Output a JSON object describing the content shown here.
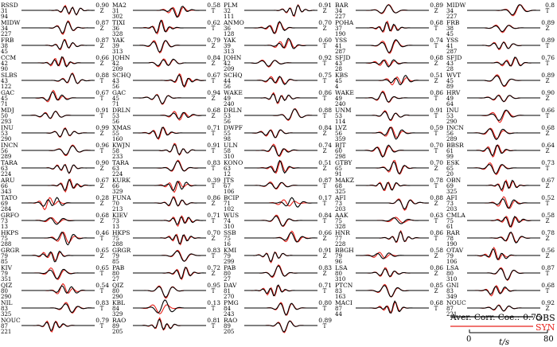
{
  "figure": {
    "aver_corr_label": "Aver. Corr. Coe.:",
    "aver_corr_value": "0.75",
    "obs_label": "OBS",
    "syn_label": "SYN",
    "axis_label": "t/s",
    "tick_start": "0",
    "tick_end": "80",
    "obs_color": "#000000",
    "syn_color": "#e8231c"
  },
  "chart_data": {
    "type": "line",
    "time_range_s": [
      0,
      80
    ],
    "columns": [
      [
        {
          "station": "RSSD",
          "dist": "31",
          "az": "94",
          "comp": "Z",
          "corr": "0.90"
        },
        {
          "station": "MIDW",
          "dist": "34",
          "az": "227",
          "comp": "Z",
          "corr": "0.87"
        },
        {
          "station": "FRB",
          "dist": "38",
          "az": "45",
          "comp": "Z",
          "corr": "0.87"
        },
        {
          "station": "CCM",
          "dist": "42",
          "az": "90",
          "comp": "Z",
          "corr": "0.66"
        },
        {
          "station": "SLBS",
          "dist": "43",
          "az": "122",
          "comp": "T",
          "corr": "0.88"
        },
        {
          "station": "GAC",
          "dist": "45",
          "az": "71",
          "comp": "T",
          "corr": "0.67"
        },
        {
          "station": "MDJ",
          "dist": "50",
          "az": "293",
          "comp": "T",
          "corr": "0.91"
        },
        {
          "station": "INU",
          "dist": "53",
          "az": "290",
          "comp": "Z",
          "corr": "0.99"
        },
        {
          "station": "INCN",
          "dist": "56",
          "az": "289",
          "comp": "T",
          "corr": "0.96"
        },
        {
          "station": "TARA",
          "dist": "63",
          "az": "224",
          "comp": "Z",
          "corr": "0.90"
        },
        {
          "station": "ARU",
          "dist": "66",
          "az": "343",
          "comp": "Z",
          "corr": "0.67"
        },
        {
          "station": "TATO",
          "dist": "69",
          "az": "284",
          "comp": "Z",
          "corr": "0.28"
        },
        {
          "station": "GRFO",
          "dist": "73",
          "az": "13",
          "comp": "Z",
          "corr": "0.68"
        },
        {
          "station": "HKPS",
          "dist": "75",
          "az": "288",
          "comp": "T",
          "corr": "0.46"
        },
        {
          "station": "GRGR",
          "dist": "79",
          "az": "85",
          "comp": "Z",
          "corr": "0.65"
        },
        {
          "station": "KIV",
          "dist": "79",
          "az": "351",
          "comp": "T",
          "corr": "0.65"
        },
        {
          "station": "QIZ",
          "dist": "80",
          "az": "290",
          "comp": "T",
          "corr": "0.54"
        },
        {
          "station": "NIL",
          "dist": "83",
          "az": "325",
          "comp": "T",
          "corr": "0.83"
        },
        {
          "station": "NOUC",
          "dist": "87",
          "az": "221",
          "comp": "T",
          "corr": "0.79"
        }
      ],
      [
        {
          "station": "MA2",
          "dist": "31",
          "az": "302",
          "comp": "T",
          "corr": "0.58"
        },
        {
          "station": "TIXI",
          "dist": "36",
          "az": "328",
          "comp": "T",
          "corr": "0.62"
        },
        {
          "station": "YAK",
          "dist": "39",
          "az": "313",
          "comp": "Z",
          "corr": "0.79"
        },
        {
          "station": "JOHN",
          "dist": "42",
          "az": "209",
          "comp": "Z",
          "corr": "0.84"
        },
        {
          "station": "SCHQ",
          "dist": "43",
          "az": "56",
          "comp": "T",
          "corr": "0.67"
        },
        {
          "station": "GAC",
          "dist": "45",
          "az": "71",
          "comp": "Z",
          "corr": "0.94"
        },
        {
          "station": "DRLN",
          "dist": "53",
          "az": "56",
          "comp": "Z",
          "corr": "0.68"
        },
        {
          "station": "XMAS",
          "dist": "55",
          "az": "160",
          "comp": "T",
          "corr": "0.71"
        },
        {
          "station": "KWJN",
          "dist": "58",
          "az": "233",
          "comp": "T",
          "corr": "0.91"
        },
        {
          "station": "TARA",
          "dist": "63",
          "az": "224",
          "comp": "T",
          "corr": "0.83"
        },
        {
          "station": "KURK",
          "dist": "66",
          "az": "329",
          "comp": "T",
          "corr": "0.39"
        },
        {
          "station": "FUNA",
          "dist": "70",
          "az": "213",
          "comp": "Z",
          "corr": "0.86"
        },
        {
          "station": "KIEV",
          "dist": "73",
          "az": "13",
          "comp": "T",
          "corr": "0.71"
        },
        {
          "station": "HKPS",
          "dist": "75",
          "az": "288",
          "comp": "Z",
          "corr": "0.70"
        },
        {
          "station": "GRGR",
          "dist": "79",
          "az": "85",
          "comp": "T",
          "corr": "0.83"
        },
        {
          "station": "PAB",
          "dist": "80",
          "az": "27",
          "comp": "Z",
          "corr": "0.72"
        },
        {
          "station": "QIZ",
          "dist": "80",
          "az": "290",
          "comp": "T",
          "corr": "0.95"
        },
        {
          "station": "KBL",
          "dist": "84",
          "az": "329",
          "comp": "T",
          "corr": "0.13"
        },
        {
          "station": "RAO",
          "dist": "89",
          "az": "205",
          "comp": "T",
          "corr": "0.81"
        }
      ],
      [
        {
          "station": "PLM",
          "dist": "32",
          "az": "111",
          "comp": "Z",
          "corr": "0.91"
        },
        {
          "station": "ANMO",
          "dist": "36",
          "az": "128",
          "comp": "Z",
          "corr": "0.70"
        },
        {
          "station": "YAK",
          "dist": "39",
          "az": "313",
          "comp": "T",
          "corr": "0.60"
        },
        {
          "station": "JOHN",
          "dist": "42",
          "az": "209",
          "comp": "T",
          "corr": "0.92"
        },
        {
          "station": "SCHQ",
          "dist": "44",
          "az": "56",
          "comp": "T",
          "corr": "0.75"
        },
        {
          "station": "WAKE",
          "dist": "49",
          "az": "240",
          "comp": "T",
          "corr": "0.86"
        },
        {
          "station": "DRLN",
          "dist": "53",
          "az": "56",
          "comp": "T",
          "corr": "0.88"
        },
        {
          "station": "DWPF",
          "dist": "55",
          "az": "98",
          "comp": "Z",
          "corr": "0.84"
        },
        {
          "station": "ULN",
          "dist": "58",
          "az": "310",
          "comp": "Z",
          "corr": "0.74"
        },
        {
          "station": "KONO",
          "dist": "63",
          "az": "12",
          "comp": "Z",
          "corr": "0.51"
        },
        {
          "station": "JTS",
          "dist": "67",
          "az": "106",
          "comp": "T",
          "corr": "0.87"
        },
        {
          "station": "BCIP",
          "dist": "71",
          "az": "102",
          "comp": "T",
          "corr": "0.17"
        },
        {
          "station": "WUS",
          "dist": "74",
          "az": "310",
          "comp": "T",
          "corr": "0.84"
        },
        {
          "station": "SSB",
          "dist": "75",
          "az": "16",
          "comp": "Z",
          "corr": "0.66"
        },
        {
          "station": "KMI",
          "dist": "79",
          "az": "299",
          "comp": "Z",
          "corr": "0.91"
        },
        {
          "station": "PAB",
          "dist": "80",
          "az": "27",
          "comp": "Z",
          "corr": "0.83"
        },
        {
          "station": "DAV",
          "dist": "81",
          "az": "270",
          "comp": "T",
          "corr": "0.71"
        },
        {
          "station": "PMG",
          "dist": "84",
          "az": "243",
          "comp": "T",
          "corr": "0.80"
        },
        {
          "station": "RAO",
          "dist": "89",
          "az": "205",
          "comp": "T",
          "corr": "0.89"
        }
      ],
      [
        {
          "station": "BAR",
          "dist": "34",
          "az": "227",
          "comp": "Z",
          "corr": "0.89"
        },
        {
          "station": "POHA",
          "dist": "37",
          "az": "190",
          "comp": "T",
          "corr": "0.68"
        },
        {
          "station": "YSS",
          "dist": "41",
          "az": "287",
          "comp": "T",
          "corr": "0.74"
        },
        {
          "station": "SFJD",
          "dist": "43",
          "az": "28",
          "comp": "Z",
          "corr": "0.68"
        },
        {
          "station": "KBS",
          "dist": "45",
          "az": "4",
          "comp": "Z",
          "corr": "0.51"
        },
        {
          "station": "WAKE",
          "dist": "49",
          "az": "240",
          "comp": "T",
          "corr": "0.86"
        },
        {
          "station": "UNM",
          "dist": "53",
          "az": "114",
          "comp": "T",
          "corr": "0.91"
        },
        {
          "station": "LVZ",
          "dist": "56",
          "az": "359",
          "comp": "T",
          "corr": "0.59"
        },
        {
          "station": "BJT",
          "dist": "60",
          "az": "298",
          "comp": "T",
          "corr": "0.70"
        },
        {
          "station": "GTBY",
          "dist": "65",
          "az": "91",
          "comp": "Z",
          "corr": "0.70"
        },
        {
          "station": "MAKZ",
          "dist": "68",
          "az": "325",
          "comp": "T",
          "corr": "0.78"
        },
        {
          "station": "AFI",
          "dist": "73",
          "az": "203",
          "comp": "Z",
          "corr": "0.88"
        },
        {
          "station": "AAK",
          "dist": "75",
          "az": "328",
          "comp": "T",
          "corr": "0.63"
        },
        {
          "station": "HNR",
          "dist": "77",
          "az": "228",
          "comp": "T",
          "corr": "0.86"
        },
        {
          "station": "BBGH",
          "dist": "79",
          "az": "96",
          "comp": "Z",
          "corr": "0.58"
        },
        {
          "station": "LSA",
          "dist": "80",
          "az": "310",
          "comp": "Z",
          "corr": "0.86"
        },
        {
          "station": "PTCN",
          "dist": "83",
          "az": "163",
          "comp": "Z",
          "corr": "0.85"
        },
        {
          "station": "MACI",
          "dist": "87",
          "az": "44",
          "comp": "T",
          "corr": "0.68"
        }
      ],
      [
        {
          "station": "MIDW",
          "dist": "34",
          "az": "227",
          "comp": "T",
          "corr": "0.8"
        },
        {
          "station": "FRB",
          "dist": "38",
          "az": "45",
          "comp": "Z",
          "corr": "0.89"
        },
        {
          "station": "YSS",
          "dist": "41",
          "az": "287",
          "comp": "T",
          "corr": "0.89"
        },
        {
          "station": "SFJD",
          "dist": "43",
          "az": "28",
          "comp": "T",
          "corr": "0.76"
        },
        {
          "station": "WVT",
          "dist": "45",
          "az": "89",
          "comp": "Z",
          "corr": "0.89"
        },
        {
          "station": "HRV",
          "dist": "49",
          "az": "64",
          "comp": "Z",
          "corr": "0.90"
        },
        {
          "station": "INU",
          "dist": "53",
          "az": "290",
          "comp": "T",
          "corr": "0.66"
        },
        {
          "station": "INCN",
          "dist": "56",
          "az": "289",
          "comp": "Z",
          "corr": "0.68"
        },
        {
          "station": "BBSR",
          "dist": "61",
          "az": "99",
          "comp": "Z",
          "corr": "0.64"
        },
        {
          "station": "ESK",
          "dist": "65",
          "az": "20",
          "comp": "T",
          "corr": "0.73"
        },
        {
          "station": "OBN",
          "dist": "69",
          "az": "325",
          "comp": "Z",
          "corr": "0.67"
        },
        {
          "station": "AFI",
          "dist": "73",
          "az": "203",
          "comp": "T",
          "corr": "0.52"
        },
        {
          "station": "CMLA",
          "dist": "75",
          "az": "61",
          "comp": "Z",
          "corr": "0.58"
        },
        {
          "station": "RAR",
          "dist": "78",
          "az": "190",
          "comp": "Z",
          "corr": "0.78"
        },
        {
          "station": "OTAV",
          "dist": "79",
          "az": "106",
          "comp": "Z",
          "corr": "0.56"
        },
        {
          "station": "LSA",
          "dist": "80",
          "az": "310",
          "comp": "T",
          "corr": "0.87"
        },
        {
          "station": "GNI",
          "dist": "83",
          "az": "349",
          "comp": "T",
          "corr": "0.68"
        },
        {
          "station": "NOUC",
          "dist": "87",
          "az": "221",
          "comp": "Z",
          "corr": "0.92"
        }
      ]
    ]
  }
}
